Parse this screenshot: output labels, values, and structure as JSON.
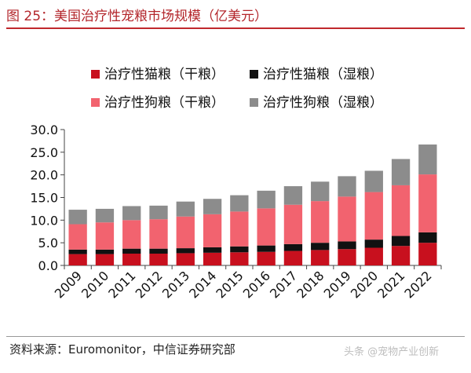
{
  "figure_title": "图 25：美国治疗性宠粮市场规模（亿美元）",
  "source_text": "资料来源：Euromonitor，中信证券研究部",
  "watermark": "头条 @宠物产业创新",
  "colors": {
    "title": "#b3262b",
    "cat_dry": "#c8101e",
    "cat_wet": "#111111",
    "dog_dry": "#f2636f",
    "dog_wet": "#8c8c8c"
  },
  "chart_data": {
    "type": "bar",
    "stacked": true,
    "categories": [
      "2009",
      "2010",
      "2011",
      "2012",
      "2013",
      "2014",
      "2015",
      "2016",
      "2017",
      "2018",
      "2019",
      "2020",
      "2021",
      "2022"
    ],
    "series": [
      {
        "name": "治疗性猫粮（干粮）",
        "color": "#c8101e",
        "values": [
          2.5,
          2.5,
          2.6,
          2.6,
          2.7,
          2.8,
          2.9,
          3.0,
          3.2,
          3.4,
          3.6,
          3.9,
          4.3,
          5.0
        ]
      },
      {
        "name": "治疗性猫粮（湿粮）",
        "color": "#111111",
        "values": [
          1.0,
          1.0,
          1.1,
          1.1,
          1.1,
          1.2,
          1.3,
          1.4,
          1.5,
          1.6,
          1.7,
          1.8,
          2.2,
          2.3
        ]
      },
      {
        "name": "治疗性狗粮（干粮）",
        "color": "#f2636f",
        "values": [
          5.6,
          6.0,
          6.3,
          6.5,
          7.0,
          7.3,
          7.7,
          8.2,
          8.7,
          9.2,
          9.9,
          10.5,
          11.2,
          12.8
        ]
      },
      {
        "name": "治疗性狗粮（湿粮）",
        "color": "#8c8c8c",
        "values": [
          3.2,
          3.0,
          3.1,
          3.0,
          3.3,
          3.4,
          3.6,
          3.9,
          4.1,
          4.3,
          4.5,
          4.7,
          5.8,
          6.6
        ]
      }
    ],
    "y_ticks": [
      "0.0",
      "5.0",
      "10.0",
      "15.0",
      "20.0",
      "25.0",
      "30.0"
    ],
    "ylim": [
      0,
      30
    ],
    "grid": false,
    "legend_position": "top"
  }
}
